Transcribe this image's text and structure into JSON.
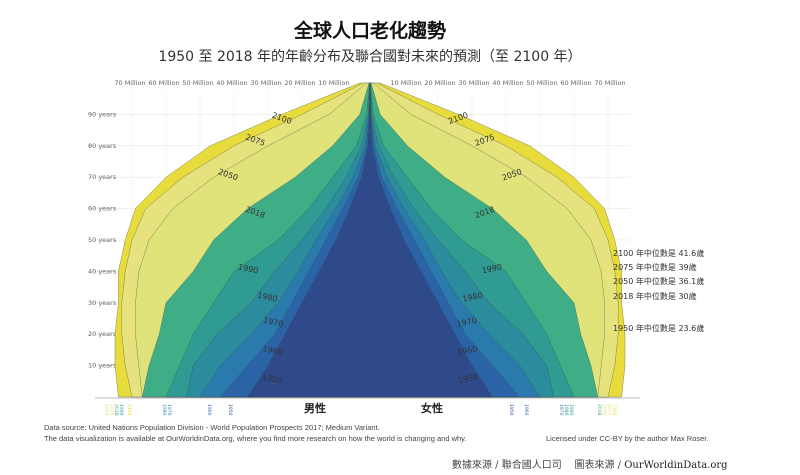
{
  "header": {
    "title": "全球人口老化趨勢",
    "subtitle": "1950 至 2018 年的年齡分布及聯合國對未來的預測（至 2100 年）"
  },
  "chart_data": {
    "type": "area",
    "chart_kind": "population-pyramid",
    "x_ticks": [
      "70 Million",
      "60 Million",
      "50 Million",
      "40 Million",
      "30 Million",
      "20 Million",
      "10 Million",
      "10 Million",
      "20 Million",
      "30 Million",
      "40 Million",
      "50 Million",
      "60 Million",
      "70 Million"
    ],
    "y_ticks": [
      "10 years",
      "20 years",
      "30 years",
      "40 years",
      "50 years",
      "60 years",
      "70 years",
      "80 years",
      "90 years"
    ],
    "xlim": [
      -75,
      75
    ],
    "ylim": [
      0,
      100
    ],
    "ages": [
      0,
      10,
      20,
      30,
      40,
      50,
      60,
      70,
      80,
      90,
      100
    ],
    "sex_labels": {
      "male": "男性",
      "female": "女性"
    },
    "series": [
      {
        "name": "2100",
        "color": "#e8dc3c",
        "values": [
          74,
          75,
          75,
          74,
          74,
          72,
          69,
          60,
          47,
          26,
          3
        ]
      },
      {
        "name": "2075",
        "color": "#e6e27e",
        "values": [
          70,
          72,
          73,
          73,
          72,
          70,
          66,
          55,
          40,
          20,
          2
        ]
      },
      {
        "name": "2050",
        "color": "#dfe37a",
        "values": [
          67,
          68,
          69,
          69,
          68,
          65,
          58,
          46,
          30,
          12,
          1
        ]
      },
      {
        "name": "2018",
        "color": "#3fae86",
        "values": [
          67,
          65,
          62,
          60,
          52,
          46,
          36,
          22,
          11,
          3,
          0.3
        ]
      },
      {
        "name": "1990",
        "color": "#2f9b92",
        "values": [
          60,
          56,
          52,
          46,
          40,
          27,
          18,
          11,
          4,
          1,
          0.1
        ]
      },
      {
        "name": "1980",
        "color": "#2b8c9e",
        "values": [
          54,
          52,
          45,
          35,
          28,
          20,
          13,
          7,
          2.5,
          0.5,
          0
        ]
      },
      {
        "name": "1970",
        "color": "#2a7aad",
        "values": [
          50,
          44,
          35,
          27,
          21,
          16,
          10,
          5,
          1.5,
          0.3,
          0
        ]
      },
      {
        "name": "1960",
        "color": "#2a63a6",
        "values": [
          44,
          36,
          28,
          23,
          18,
          13,
          8,
          3.5,
          1,
          0.2,
          0
        ]
      },
      {
        "name": "1950",
        "color": "#2e4a8b",
        "values": [
          36,
          30,
          25,
          20,
          15,
          10,
          6,
          2.5,
          0.6,
          0.1,
          0
        ]
      }
    ],
    "bottom_year_labels": {
      "left": [
        "2050",
        "2075",
        "2018",
        "1990",
        "2100",
        "1980",
        "1970",
        "1960",
        "1950"
      ],
      "right": [
        "1950",
        "1960",
        "1970",
        "1980",
        "1990",
        "2018",
        "2050",
        "2075",
        "2100"
      ]
    },
    "annotations": [
      "2100 年中位數是 41.6歲",
      "2075 年中位數是 39歲",
      "2050 年中位數是 36.1歲",
      "2018 年中位數是 30歲",
      "1950 年中位數是 23.6歲"
    ],
    "median_ages": {
      "2100": 41.6,
      "2075": 39,
      "2050": 36.1,
      "2018": 30,
      "1950": 23.6
    },
    "grid": true
  },
  "footer": {
    "source_line1": "Data source: United Nations Population Division - World Population Prospects 2017; Medium Variant.",
    "source_line2": "The data visualization is available at OurWorldinData.org, where you find more research on how the world is changing and why.",
    "license": "Licensed under CC-BY by the author Max Roser.",
    "credit_data": "數據來源 / 聯合國人口司",
    "credit_chart": "圖表來源 / ",
    "credit_site": "OurWorldinData.org"
  }
}
